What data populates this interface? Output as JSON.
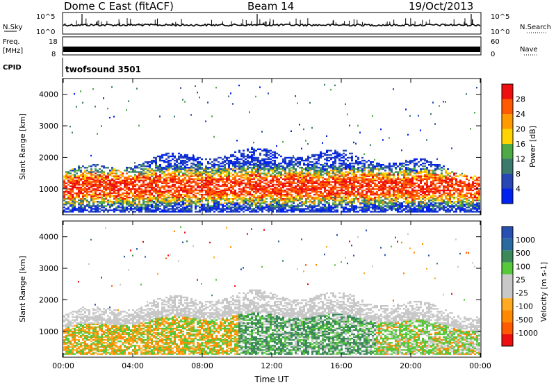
{
  "header": {
    "radar": "Dome C East (fitACF)",
    "beam": "Beam 14",
    "date": "19/Oct/2013"
  },
  "params": {
    "nsky_label": "N.Sky",
    "nsky_top": "10^5",
    "nsky_bot": "10^0",
    "nsearch_label": "N.Search",
    "nsearch_top": "10^5",
    "nsearch_bot": "10^0",
    "freq_label_1": "Freq.",
    "freq_label_2": "[MHz]",
    "freq_top": "18",
    "freq_bot": "8",
    "nave_label": "Nave",
    "nave_top": "60",
    "nave_bot": "0",
    "cpid_label": "CPID",
    "cpid_value": "twofsound 3501"
  },
  "colors": {
    "power": [
      "#0022ee",
      "#2846b4",
      "#3c7a6e",
      "#4eaa46",
      "#ffd400",
      "#ff9a00",
      "#ff5a00",
      "#ee1010"
    ],
    "velocity": [
      "#ee1010",
      "#ff5a00",
      "#ff8a00",
      "#ffaa20",
      "#c8c8c8",
      "#c8c8c8",
      "#56c83a",
      "#3c8a5a",
      "#2a6aa0",
      "#2850b0"
    ]
  },
  "chart_data": [
    {
      "type": "heatmap",
      "title": "",
      "ylabel": "Slant Range [km]",
      "xlabel": "",
      "xlim": [
        0,
        24
      ],
      "ylim": [
        180,
        4500
      ],
      "x_ticks": [
        "00:00",
        "04:00",
        "08:00",
        "12:00",
        "16:00",
        "20:00",
        "00:00"
      ],
      "y_ticks": [
        1000,
        2000,
        3000,
        4000
      ],
      "colorbar": {
        "label": "Power [dB]",
        "ticks": [
          4,
          8,
          12,
          16,
          20,
          24,
          28
        ],
        "range": [
          0,
          32
        ]
      }
    },
    {
      "type": "heatmap",
      "title": "",
      "ylabel": "Slant Range [km]",
      "xlabel": "Time UT",
      "xlim": [
        0,
        24
      ],
      "ylim": [
        180,
        4500
      ],
      "x_ticks": [
        "00:00",
        "04:00",
        "08:00",
        "12:00",
        "16:00",
        "20:00",
        "00:00"
      ],
      "y_ticks": [
        1000,
        2000,
        3000,
        4000
      ],
      "colorbar": {
        "label": "Velocity [m s-1]",
        "ticks": [
          1000,
          500,
          100,
          25,
          -25,
          -100,
          -500,
          -1000
        ]
      }
    }
  ]
}
